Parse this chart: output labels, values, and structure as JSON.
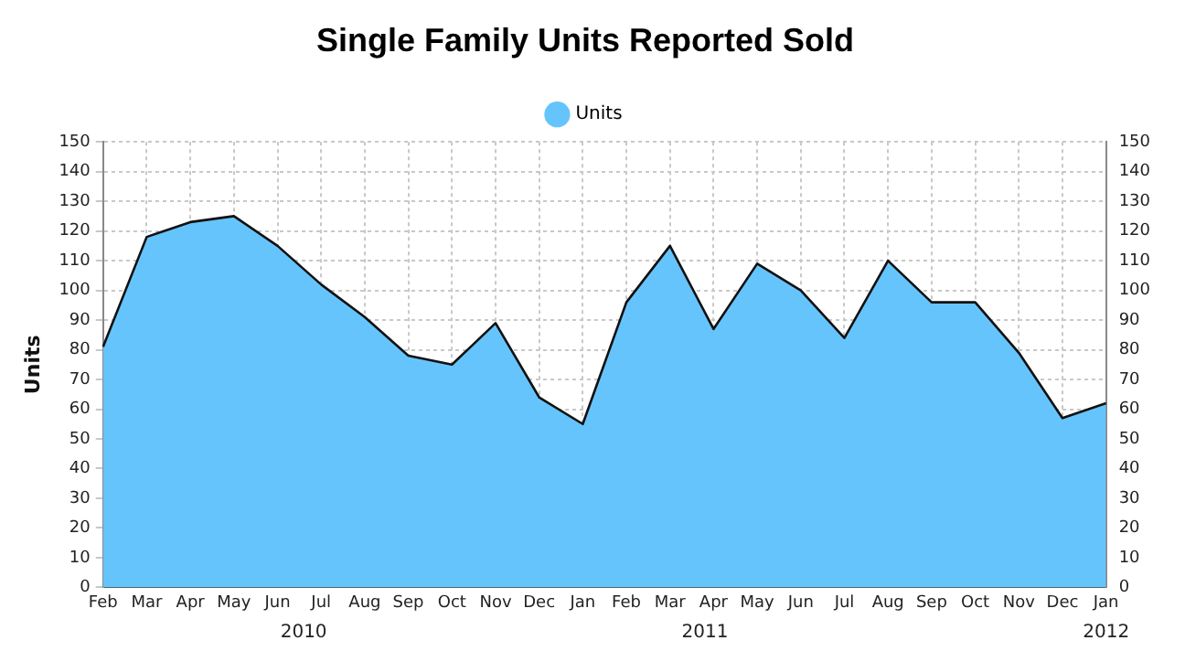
{
  "chart_data": {
    "type": "area",
    "title": "Single Family Units Reported Sold",
    "ylabel": "Units",
    "categories": [
      "Feb",
      "Mar",
      "Apr",
      "May",
      "Jun",
      "Jul",
      "Aug",
      "Sep",
      "Oct",
      "Nov",
      "Dec",
      "Jan",
      "Feb",
      "Mar",
      "Apr",
      "May",
      "Jun",
      "Jul",
      "Aug",
      "Sep",
      "Oct",
      "Nov",
      "Dec",
      "Jan"
    ],
    "annotations": [
      "2010",
      "2011",
      "2012"
    ],
    "series": [
      {
        "name": "Units",
        "color": "#66c4fc",
        "values": [
          81,
          118,
          123,
          125,
          115,
          102,
          91,
          78,
          75,
          89,
          64,
          55,
          96,
          115,
          87,
          109,
          100,
          84,
          110,
          96,
          96,
          79,
          57,
          62
        ]
      }
    ],
    "ylim": [
      0,
      150
    ],
    "yticks": [
      0,
      10,
      20,
      30,
      40,
      50,
      60,
      70,
      80,
      90,
      100,
      110,
      120,
      130,
      140,
      150
    ],
    "y2lim": [
      0,
      150
    ],
    "y2ticks": [
      0,
      10,
      20,
      30,
      40,
      50,
      60,
      70,
      80,
      90,
      100,
      110,
      120,
      130,
      140,
      150
    ],
    "grid": true,
    "legend": "top",
    "line_style": "solid",
    "marker": "none"
  }
}
